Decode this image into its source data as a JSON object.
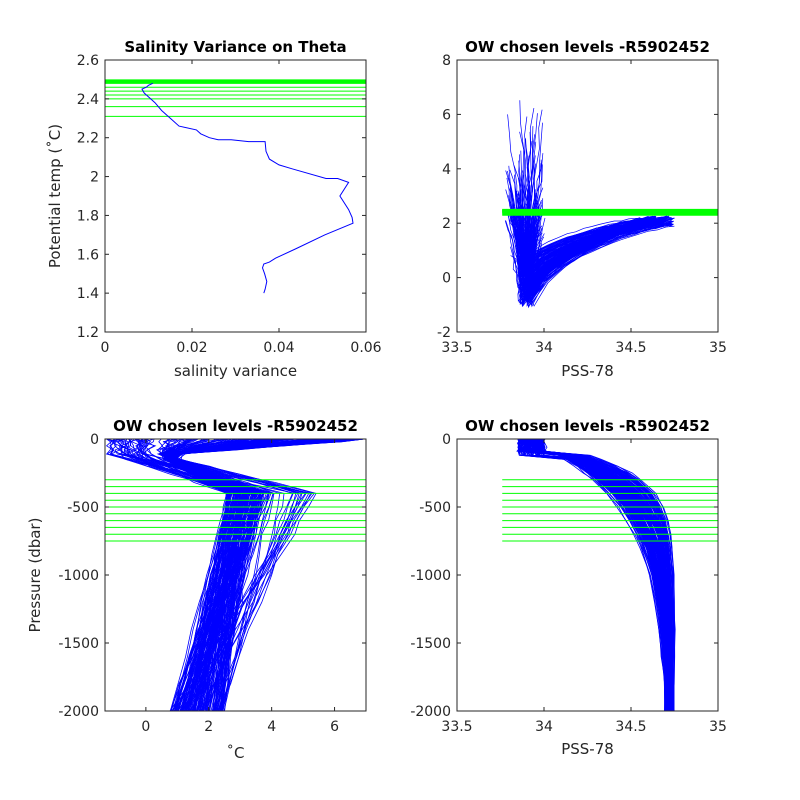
{
  "figure": {
    "background": "#ffffff",
    "line_color": "#0000ff",
    "level_color": "#00ff00",
    "axes_color": "#262626"
  },
  "chart_data": [
    {
      "id": "variance",
      "type": "line",
      "title": "Salinity Variance on Theta",
      "xlabel": "salinity variance",
      "ylabel": "Potential temp (˚C)",
      "xlim": [
        0,
        0.06
      ],
      "ylim": [
        1.2,
        2.6
      ],
      "xticks": [
        "0",
        "0.02",
        "0.04",
        "0.06"
      ],
      "yticks": [
        "1.2",
        "1.4",
        "1.6",
        "1.8",
        "2",
        "2.2",
        "2.4",
        "2.6"
      ],
      "series": [
        {
          "x": [
            0.0365,
            0.0368,
            0.0372,
            0.0367,
            0.0362,
            0.0365,
            0.0378,
            0.0392,
            0.044,
            0.0505,
            0.057,
            0.0568,
            0.056,
            0.054,
            0.056,
            0.0535,
            0.0508,
            0.043,
            0.04,
            0.0378,
            0.037,
            0.0368,
            0.033,
            0.029,
            0.026,
            0.024,
            0.022,
            0.021,
            0.017,
            0.015,
            0.013,
            0.0115,
            0.01,
            0.009,
            0.0085,
            0.0095,
            0.01,
            0.011
          ],
          "y": [
            1.4,
            1.42,
            1.46,
            1.5,
            1.53,
            1.55,
            1.56,
            1.58,
            1.63,
            1.7,
            1.76,
            1.79,
            1.83,
            1.9,
            1.97,
            1.99,
            1.99,
            2.04,
            2.06,
            2.09,
            2.13,
            2.18,
            2.18,
            2.19,
            2.19,
            2.2,
            2.22,
            2.24,
            2.26,
            2.3,
            2.34,
            2.38,
            2.41,
            2.43,
            2.45,
            2.46,
            2.47,
            2.48
          ]
        }
      ],
      "levels": [
        2.31,
        2.36,
        2.4,
        2.42,
        2.44,
        2.46,
        2.48,
        2.49
      ]
    },
    {
      "id": "theta-s",
      "type": "line",
      "title": "OW chosen levels -R5902452",
      "xlabel": "PSS-78",
      "ylabel": "",
      "xlim": [
        33.5,
        35
      ],
      "ylim": [
        -2,
        8
      ],
      "xticks": [
        "33.5",
        "34",
        "34.5",
        "35"
      ],
      "yticks": [
        "-2",
        "0",
        "2",
        "4",
        "6",
        "8"
      ],
      "levels": [
        2.31,
        2.36,
        2.4,
        2.42,
        2.44,
        2.46,
        2.48,
        2.49
      ],
      "level_x_start": 33.76
    },
    {
      "id": "temp-pressure",
      "type": "line",
      "title": "OW chosen levels -R5902452",
      "xlabel": "˚C",
      "ylabel": "Pressure (dbar)",
      "xlim": [
        -1.3,
        7
      ],
      "ylim": [
        -2000,
        0
      ],
      "xticks": [
        "0",
        "2",
        "4",
        "6"
      ],
      "yticks": [
        "-2000",
        "-1500",
        "-1000",
        "-500",
        "0"
      ],
      "levels": [
        -300,
        -350,
        -400,
        -450,
        -500,
        -550,
        -600,
        -650,
        -700,
        -750
      ]
    },
    {
      "id": "salinity-pressure",
      "type": "line",
      "title": "OW chosen levels -R5902452",
      "xlabel": "PSS-78",
      "ylabel": "",
      "xlim": [
        33.5,
        35
      ],
      "ylim": [
        -2000,
        0
      ],
      "xticks": [
        "33.5",
        "34",
        "34.5",
        "35"
      ],
      "yticks": [
        "-2000",
        "-1500",
        "-1000",
        "-500",
        "0"
      ],
      "levels": [
        -300,
        -350,
        -400,
        -450,
        -500,
        -550,
        -600,
        -650,
        -700,
        -750
      ],
      "level_x_start": 33.76
    }
  ]
}
